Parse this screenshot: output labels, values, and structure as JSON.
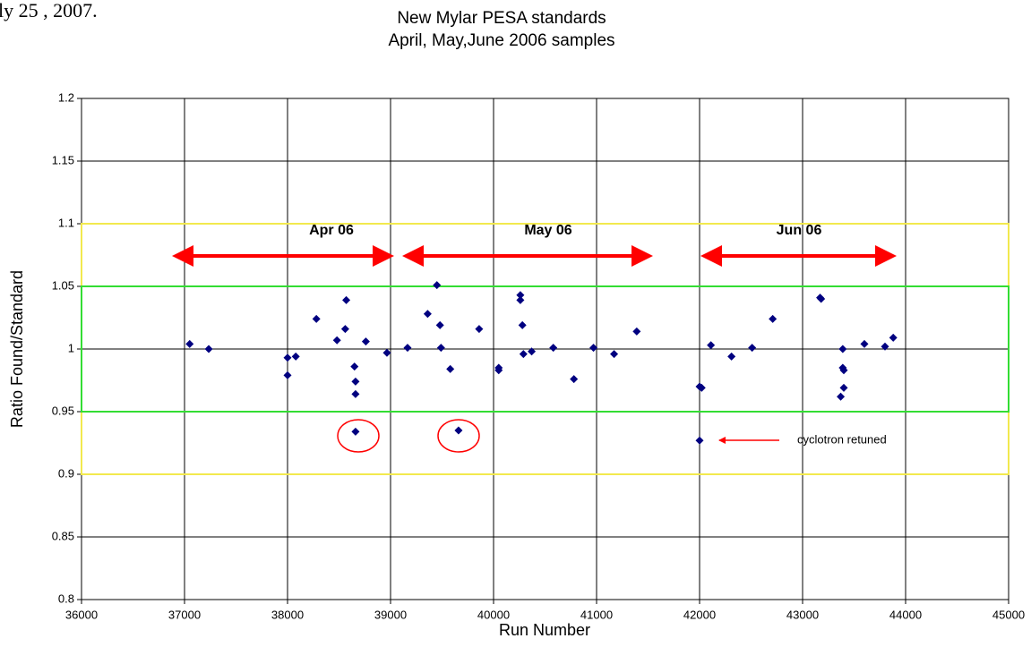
{
  "chart_data": {
    "type": "scatter",
    "title": "New Mylar PESA standards",
    "subtitle": "April, May,June 2006 samples",
    "corner_text": "ly 25 , 2007.",
    "x_label": "Run Number",
    "y_label": "Ratio Found/Standard",
    "xlim": [
      36000,
      45000
    ],
    "xticks": [
      36000,
      37000,
      38000,
      39000,
      40000,
      41000,
      42000,
      43000,
      44000,
      45000
    ],
    "ylim": [
      0.8,
      1.2
    ],
    "yticks": [
      0.8,
      0.85,
      0.9,
      0.95,
      1,
      1.05,
      1.1,
      1.15,
      1.2
    ],
    "grid": true,
    "bands": [
      {
        "ylim": [
          0.9,
          1.1
        ],
        "color": "#f2e94e"
      },
      {
        "ylim": [
          0.95,
          1.05
        ],
        "color": "#33dd33"
      }
    ],
    "annotations": [
      "Apr 06",
      "May 06",
      "Jun 06",
      "cyclotron retuned"
    ],
    "series": [
      {
        "color": "#000080",
        "x": [
          37050,
          37235,
          38000,
          38080,
          38000,
          38280,
          38480,
          38560,
          38570,
          38650,
          38660,
          38660,
          38660,
          38760,
          38965,
          39165,
          39360,
          39450,
          39480,
          39490,
          39580,
          39660,
          39860,
          40050,
          40050,
          40260,
          40260,
          40280,
          40290,
          40370,
          40580,
          40780,
          40970,
          41170,
          41390,
          42000,
          42020,
          42000,
          42110,
          42310,
          42510,
          42710,
          43170,
          43180,
          43390,
          43390,
          43400,
          43400,
          43370,
          43600,
          43800,
          43880
        ],
        "values": [
          1.004,
          1.0,
          0.993,
          0.994,
          0.979,
          1.024,
          1.007,
          1.016,
          1.039,
          0.986,
          0.974,
          0.964,
          0.934,
          1.006,
          0.997,
          1.001,
          1.028,
          1.051,
          1.019,
          1.001,
          0.984,
          0.935,
          1.016,
          0.985,
          0.983,
          1.043,
          1.039,
          1.019,
          0.996,
          0.998,
          1.001,
          0.976,
          1.001,
          0.996,
          1.014,
          0.97,
          0.969,
          0.927,
          1.003,
          0.994,
          1.001,
          1.024,
          1.041,
          1.04,
          1.0,
          0.985,
          0.983,
          0.969,
          0.962,
          1.004,
          1.002,
          1.009
        ]
      }
    ]
  }
}
